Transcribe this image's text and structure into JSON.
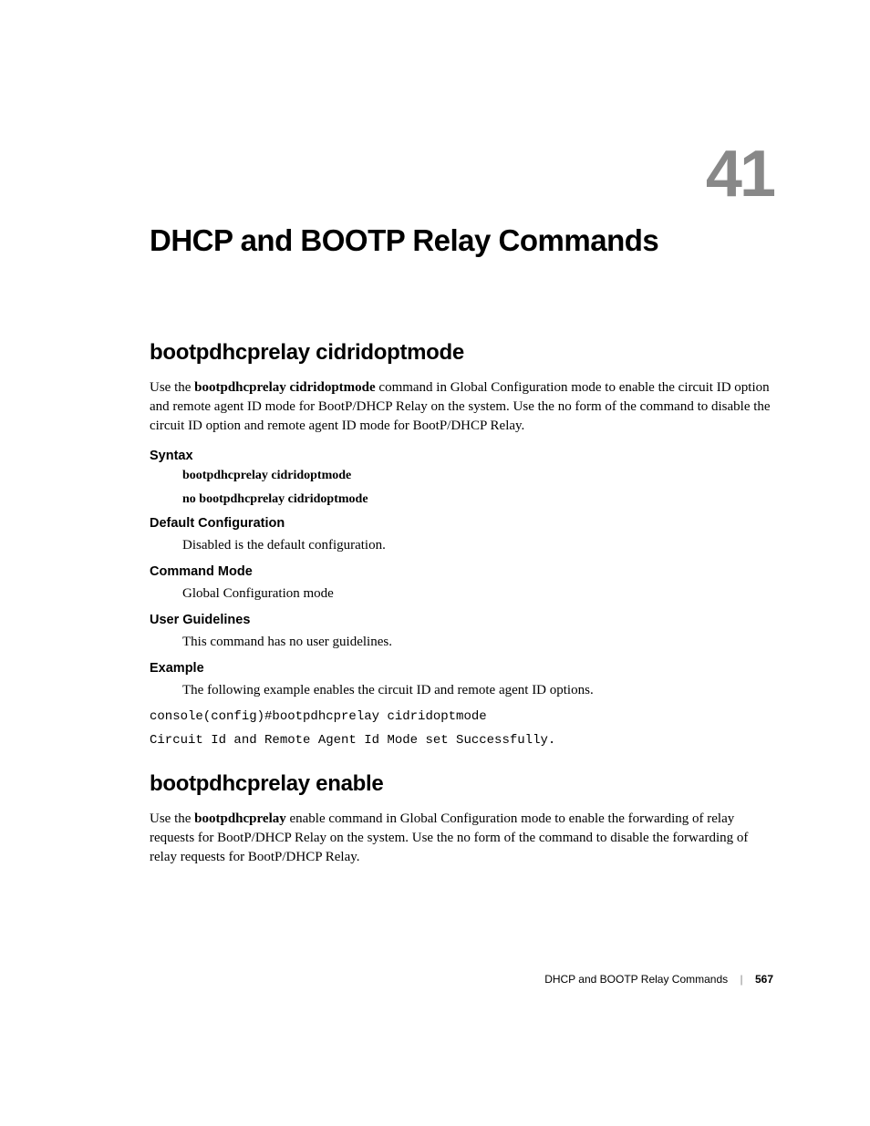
{
  "chapter_number": "41",
  "title": "DHCP and BOOTP Relay Commands",
  "section1": {
    "heading": "bootpdhcprelay cidridoptmode",
    "intro_pre": "Use the ",
    "intro_cmd": "bootpdhcprelay cidridoptmode",
    "intro_post": " command in Global Configuration mode to enable the circuit ID option and remote agent ID mode for BootP/DHCP Relay on the system. Use the no form of the command to disable the circuit ID option and remote agent ID mode for BootP/DHCP Relay.",
    "syntax": {
      "label": "Syntax",
      "line1": "bootpdhcprelay cidridoptmode",
      "line2": "no bootpdhcprelay cidridoptmode"
    },
    "default_config": {
      "label": "Default Configuration",
      "text": "Disabled is the default configuration."
    },
    "command_mode": {
      "label": "Command Mode",
      "text": "Global Configuration mode"
    },
    "user_guidelines": {
      "label": "User Guidelines",
      "text": "This command has no user guidelines."
    },
    "example": {
      "label": "Example",
      "text": "The following example enables the circuit ID and remote agent ID options.",
      "code1": "console(config)#bootpdhcprelay cidridoptmode",
      "code2": "Circuit Id and Remote Agent Id Mode set Successfully."
    }
  },
  "section2": {
    "heading": "bootpdhcprelay enable",
    "intro_pre": "Use the ",
    "intro_cmd": "bootpdhcprelay",
    "intro_post": " enable command in Global Configuration mode to enable the forwarding of relay requests for BootP/DHCP Relay on the system. Use the no form of the command to disable the forwarding of relay requests for BootP/DHCP Relay."
  },
  "footer": {
    "section_name": "DHCP and BOOTP Relay Commands",
    "page_number": "567"
  },
  "colors": {
    "chapter_number": "#888888",
    "text": "#000000",
    "background": "#ffffff"
  },
  "fonts": {
    "headings": "Arial Narrow",
    "body": "Georgia",
    "code": "Courier New"
  }
}
